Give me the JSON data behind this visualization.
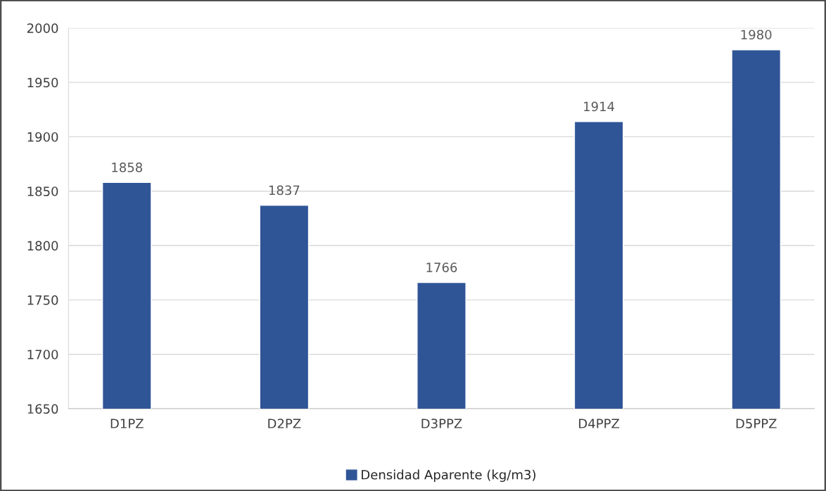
{
  "chart_data": {
    "type": "bar",
    "categories": [
      "D1PZ",
      "D2PZ",
      "D3PPZ",
      "D4PPZ",
      "D5PPZ"
    ],
    "series": [
      {
        "name": "Densidad Aparente (kg/m3)",
        "color": "#2f5597",
        "values": [
          1858,
          1837,
          1766,
          1914,
          1980
        ]
      }
    ],
    "ylim": [
      1650,
      2000
    ],
    "yticks": [
      1650,
      1700,
      1750,
      1800,
      1850,
      1900,
      1950,
      2000
    ],
    "grid": "y",
    "legend": "bottom",
    "data_labels": true
  }
}
